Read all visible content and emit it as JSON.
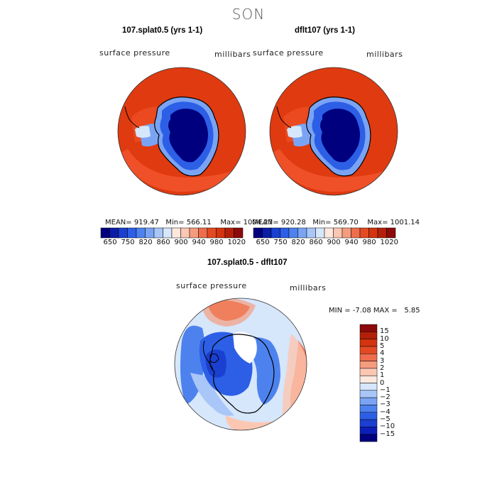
{
  "season": "SON",
  "colors": {
    "abs_levels": [
      "#00007f",
      "#0a1da6",
      "#1a3fd1",
      "#2c5fe6",
      "#4d82ee",
      "#7aa4f3",
      "#a9c6f8",
      "#d6e6fb",
      "#fde8dd",
      "#fbc7b2",
      "#f59c7f",
      "#ee6d4d",
      "#e34a24",
      "#d4340e",
      "#b3200a",
      "#8c0a0a"
    ],
    "diff_levels": [
      "#00007f",
      "#0b1fb8",
      "#1a3fd1",
      "#2c5fe6",
      "#4d82ee",
      "#7aa4f3",
      "#a9c6f8",
      "#d6e6fb",
      "#fde8dd",
      "#fbc7b2",
      "#f59c7f",
      "#ee6d4d",
      "#e34a24",
      "#d4340e",
      "#b3200a",
      "#8c0a0a"
    ]
  },
  "chart_data": [
    {
      "type": "heatmap",
      "title": "107.splat0.5 (yrs 1-1)",
      "left_label": "surface pressure",
      "right_label": "millibars",
      "stats": {
        "mean_label": "MEAN=",
        "mean": "919.47",
        "min_label": "Min=",
        "min": "566.11",
        "max_label": "Max=",
        "max": "1004.27"
      },
      "colorbar_ticks": [
        "650",
        "750",
        "820",
        "860",
        "900",
        "940",
        "980",
        "1020"
      ]
    },
    {
      "type": "heatmap",
      "title": "dflt107 (yrs 1-1)",
      "left_label": "surface pressure",
      "right_label": "millibars",
      "stats": {
        "mean_label": "MEAN=",
        "mean": "920.28",
        "min_label": "Min=",
        "min": "569.70",
        "max_label": "Max=",
        "max": "1001.14"
      },
      "colorbar_ticks": [
        "650",
        "750",
        "820",
        "860",
        "900",
        "940",
        "980",
        "1020"
      ]
    },
    {
      "type": "heatmap",
      "title": "107.splat0.5 - dflt107",
      "left_label": "surface pressure",
      "right_label": "millibars",
      "stats": {
        "min_label": "MIN =",
        "min": "-7.08",
        "max_label": "MAX =",
        "max": "5.85"
      },
      "colorbar_ticks": [
        "15",
        "10",
        "5",
        "4",
        "3",
        "2",
        "1",
        "0",
        "−1",
        "−2",
        "−3",
        "−4",
        "−5",
        "−10",
        "−15"
      ]
    }
  ]
}
